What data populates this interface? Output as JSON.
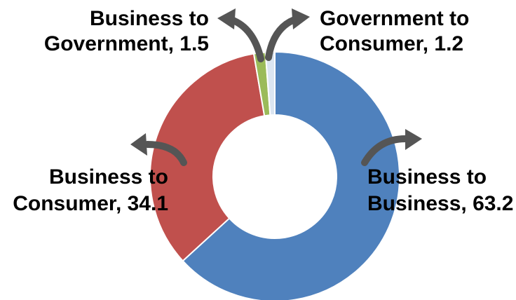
{
  "chart_data": {
    "type": "pie",
    "title": "",
    "donut": true,
    "slices": [
      {
        "label_line1": "Business to",
        "label_line2": "Business",
        "value": 63.2,
        "color": "#4f81bd",
        "value_text": "63.2"
      },
      {
        "label_line1": "Business to",
        "label_line2": "Consumer",
        "value": 34.1,
        "color": "#c0504d",
        "value_text": "34.1"
      },
      {
        "label_line1": "Business to",
        "label_line2": "Government",
        "value": 1.5,
        "color": "#9bbb59",
        "value_text": "1.5"
      },
      {
        "label_line1": "Government to",
        "label_line2": "Consumer",
        "value": 1.2,
        "color": "#dbe5f1",
        "value_text": "1.2"
      }
    ],
    "arrow_color": "#555555"
  }
}
